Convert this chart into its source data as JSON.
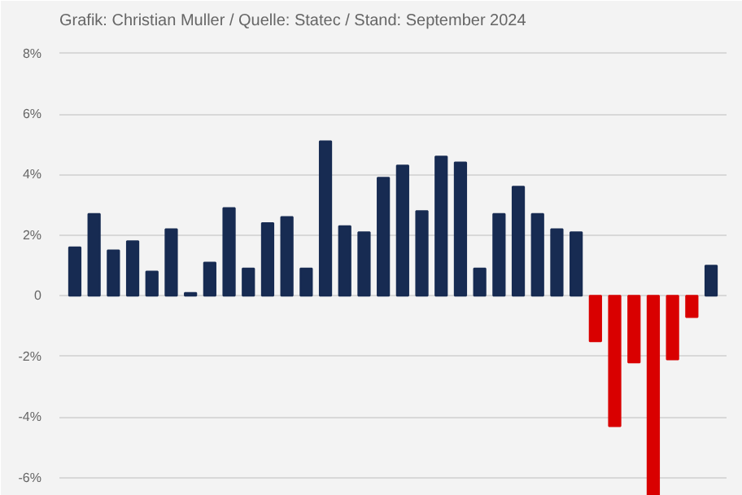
{
  "chart_data": {
    "type": "bar",
    "subtitle": "Grafik: Christian Muller / Quelle: Statec / Stand: September 2024",
    "categories": [
      null,
      null,
      null,
      null,
      null,
      null,
      null,
      null,
      null,
      null,
      null,
      null,
      null,
      null,
      null,
      null,
      null,
      null,
      null,
      null,
      null,
      null,
      null,
      null,
      null,
      null,
      null,
      null,
      null,
      null,
      null,
      null,
      null,
      null
    ],
    "values": [
      1.6,
      2.7,
      1.5,
      1.8,
      0.8,
      2.2,
      0.1,
      1.1,
      2.9,
      0.9,
      2.4,
      2.6,
      0.9,
      5.1,
      2.3,
      2.1,
      3.9,
      4.3,
      2.8,
      4.6,
      4.4,
      0.9,
      2.7,
      3.6,
      2.7,
      2.2,
      2.1,
      -1.5,
      -4.3,
      -2.2,
      -6.6,
      -2.1,
      -0.7,
      1.0
    ],
    "colors": [
      "#172b52",
      "#172b52",
      "#172b52",
      "#172b52",
      "#172b52",
      "#172b52",
      "#172b52",
      "#172b52",
      "#172b52",
      "#172b52",
      "#172b52",
      "#172b52",
      "#172b52",
      "#172b52",
      "#172b52",
      "#172b52",
      "#172b52",
      "#172b52",
      "#172b52",
      "#172b52",
      "#172b52",
      "#172b52",
      "#172b52",
      "#172b52",
      "#172b52",
      "#172b52",
      "#172b52",
      "#d90000",
      "#d90000",
      "#d90000",
      "#d90000",
      "#d90000",
      "#d90000",
      "#172b52"
    ],
    "ylim": [
      -6.6,
      8.5
    ],
    "yticks": [
      {
        "value": -6,
        "label": "-6%"
      },
      {
        "value": -4,
        "label": "-4%"
      },
      {
        "value": -2,
        "label": "-2%"
      },
      0,
      {
        "value": 2,
        "label": "2%"
      },
      {
        "value": 4,
        "label": "4%"
      },
      {
        "value": 6,
        "label": "6%"
      },
      {
        "value": 8,
        "label": "8%"
      }
    ],
    "grid": "y"
  }
}
